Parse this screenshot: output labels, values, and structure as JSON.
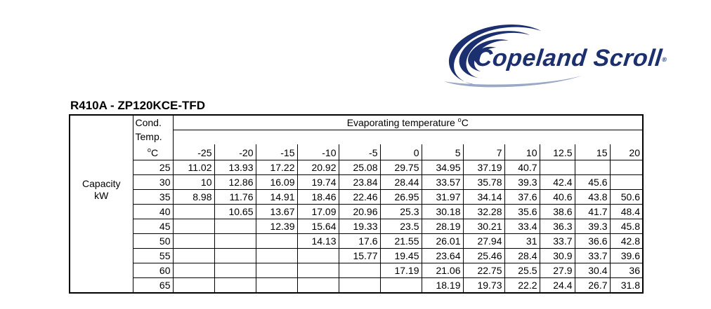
{
  "logo": {
    "text": "Copeland Scroll",
    "symbol": "®",
    "color": "#1c2f6e"
  },
  "title": "R410A - ZP120KCE-TFD",
  "table": {
    "row_label": [
      "Capacity",
      "kW"
    ],
    "cond_header": [
      "Cond.",
      "Temp."
    ],
    "cond_unit": "C",
    "degree": "o",
    "evap_header": "Evaporating temperature ",
    "evap_unit": "C",
    "evap_temps": [
      "-25",
      "-20",
      "-15",
      "-10",
      "-5",
      "0",
      "5",
      "7",
      "10",
      "12.5",
      "15",
      "20"
    ],
    "rows": [
      {
        "cond": "25",
        "values": [
          "11.02",
          "13.93",
          "17.22",
          "20.92",
          "25.08",
          "29.75",
          "34.95",
          "37.19",
          "40.7",
          "",
          "",
          ""
        ]
      },
      {
        "cond": "30",
        "values": [
          "10",
          "12.86",
          "16.09",
          "19.74",
          "23.84",
          "28.44",
          "33.57",
          "35.78",
          "39.3",
          "42.4",
          "45.6",
          ""
        ]
      },
      {
        "cond": "35",
        "values": [
          "8.98",
          "11.76",
          "14.91",
          "18.46",
          "22.46",
          "26.95",
          "31.97",
          "34.14",
          "37.6",
          "40.6",
          "43.8",
          "50.6"
        ]
      },
      {
        "cond": "40",
        "values": [
          "",
          "10.65",
          "13.67",
          "17.09",
          "20.96",
          "25.3",
          "30.18",
          "32.28",
          "35.6",
          "38.6",
          "41.7",
          "48.4"
        ]
      },
      {
        "cond": "45",
        "values": [
          "",
          "",
          "12.39",
          "15.64",
          "19.33",
          "23.5",
          "28.19",
          "30.21",
          "33.4",
          "36.3",
          "39.3",
          "45.8"
        ]
      },
      {
        "cond": "50",
        "values": [
          "",
          "",
          "",
          "14.13",
          "17.6",
          "21.55",
          "26.01",
          "27.94",
          "31",
          "33.7",
          "36.6",
          "42.8"
        ]
      },
      {
        "cond": "55",
        "values": [
          "",
          "",
          "",
          "",
          "15.77",
          "19.45",
          "23.64",
          "25.46",
          "28.4",
          "30.9",
          "33.7",
          "39.6"
        ]
      },
      {
        "cond": "60",
        "values": [
          "",
          "",
          "",
          "",
          "",
          "17.19",
          "21.06",
          "22.75",
          "25.5",
          "27.9",
          "30.4",
          "36"
        ]
      },
      {
        "cond": "65",
        "values": [
          "",
          "",
          "",
          "",
          "",
          "",
          "18.19",
          "19.73",
          "22.2",
          "24.4",
          "26.7",
          "31.8"
        ]
      }
    ]
  }
}
